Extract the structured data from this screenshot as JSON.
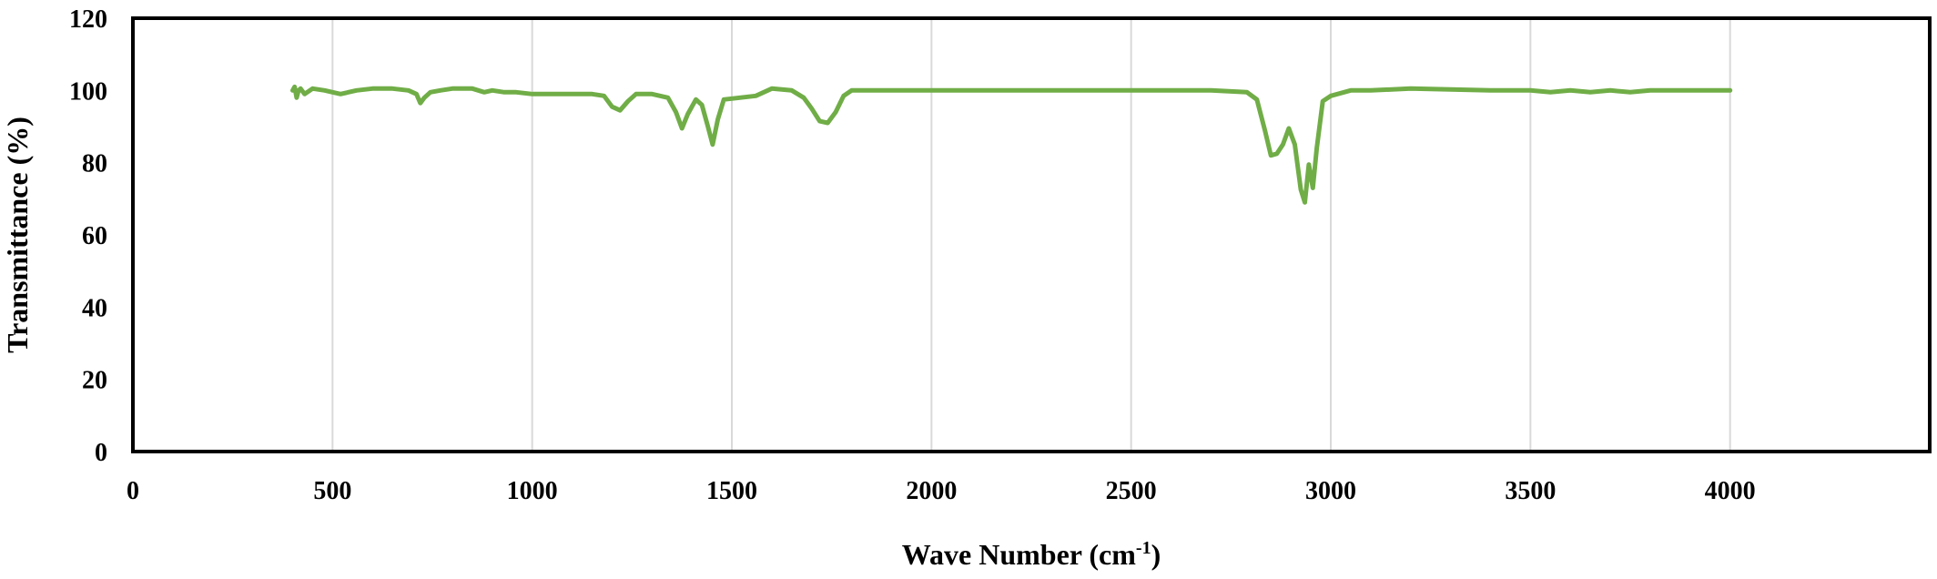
{
  "chart_data": {
    "type": "line",
    "xlabel": {
      "prefix": "Wave Number (cm",
      "sup": "-1",
      "suffix": ")"
    },
    "ylabel": "Transmittance (%)",
    "xlim": [
      0,
      4500
    ],
    "ylim": [
      0,
      120
    ],
    "xticks": [
      0,
      500,
      1000,
      1500,
      2000,
      2500,
      3000,
      3500,
      4000
    ],
    "yticks": [
      0,
      20,
      40,
      60,
      80,
      100,
      120
    ],
    "grid": "vertical",
    "legend": "none",
    "series_color": "#70ad47",
    "series": [
      {
        "x": [
          400,
          405,
          410,
          415,
          420,
          430,
          450,
          480,
          500,
          520,
          560,
          600,
          650,
          690,
          710,
          720,
          730,
          745,
          770,
          800,
          850,
          880,
          900,
          930,
          960,
          1000,
          1050,
          1100,
          1150,
          1180,
          1200,
          1220,
          1240,
          1260,
          1300,
          1340,
          1360,
          1375,
          1390,
          1410,
          1425,
          1440,
          1452,
          1465,
          1480,
          1520,
          1560,
          1600,
          1650,
          1680,
          1700,
          1720,
          1740,
          1760,
          1780,
          1800,
          1850,
          1900,
          2000,
          2200,
          2500,
          2700,
          2790,
          2815,
          2835,
          2850,
          2865,
          2880,
          2895,
          2910,
          2925,
          2935,
          2945,
          2955,
          2965,
          2980,
          3000,
          3050,
          3100,
          3200,
          3400,
          3500,
          3550,
          3600,
          3650,
          3700,
          3750,
          3800,
          3900,
          4000
        ],
        "y": [
          100,
          101,
          98,
          100,
          100.5,
          99,
          100.5,
          100,
          99.5,
          99,
          100,
          100.5,
          100.5,
          100,
          99,
          96.5,
          98,
          99.5,
          100,
          100.5,
          100.5,
          99.5,
          100,
          99.5,
          99.5,
          99,
          99,
          99,
          99,
          98.5,
          95.5,
          94.5,
          97,
          99,
          99,
          98,
          94,
          89.5,
          93.5,
          97.5,
          96,
          90,
          85,
          92,
          97.5,
          98,
          98.5,
          100.5,
          100,
          98,
          95,
          91.5,
          91,
          94,
          98.5,
          100,
          100,
          100,
          100,
          100,
          100,
          100,
          99.5,
          97.5,
          89,
          82,
          82.5,
          85,
          89.5,
          85,
          72.5,
          69,
          79.5,
          73,
          84,
          97,
          98.5,
          100,
          100,
          100.5,
          100,
          100,
          99.5,
          100,
          99.5,
          100,
          99.5,
          100,
          100,
          100
        ]
      }
    ]
  }
}
